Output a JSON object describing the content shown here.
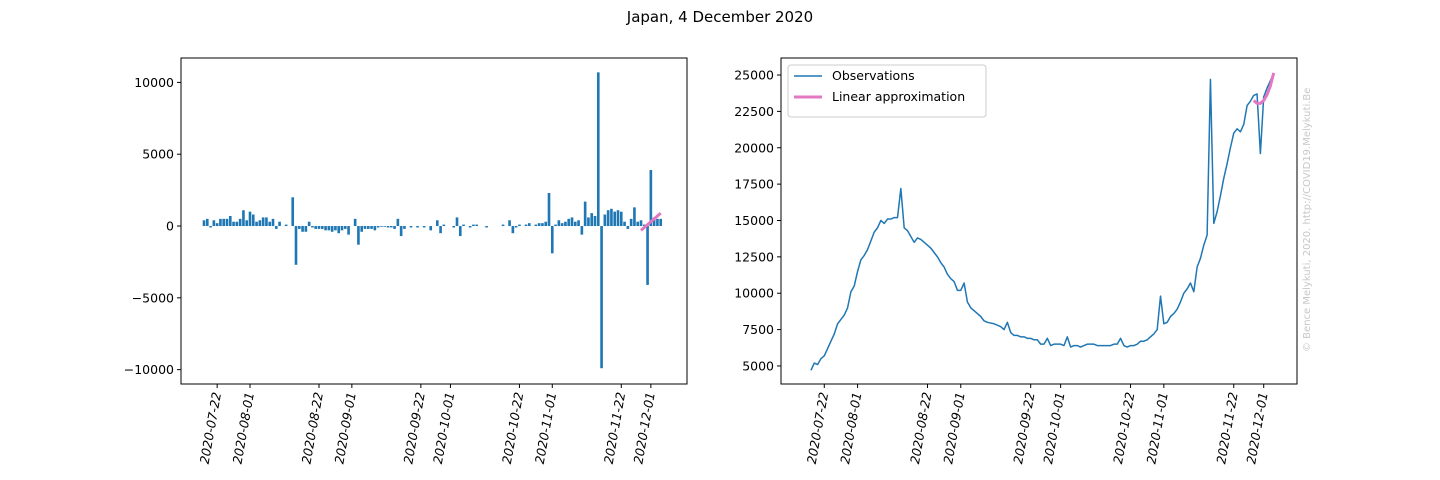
{
  "title": "Japan, 4 December 2020",
  "watermark": "© Bence Melykuti, 2020. http://COVID19.Melykuti.Be",
  "chart_data": [
    {
      "type": "bar",
      "x": [
        "2020-07-18",
        "2020-07-19",
        "2020-07-20",
        "2020-07-21",
        "2020-07-22",
        "2020-07-23",
        "2020-07-24",
        "2020-07-25",
        "2020-07-26",
        "2020-07-27",
        "2020-07-28",
        "2020-07-29",
        "2020-07-30",
        "2020-07-31",
        "2020-08-01",
        "2020-08-02",
        "2020-08-03",
        "2020-08-04",
        "2020-08-05",
        "2020-08-06",
        "2020-08-07",
        "2020-08-08",
        "2020-08-09",
        "2020-08-10",
        "2020-08-11",
        "2020-08-12",
        "2020-08-13",
        "2020-08-14",
        "2020-08-15",
        "2020-08-16",
        "2020-08-17",
        "2020-08-18",
        "2020-08-19",
        "2020-08-20",
        "2020-08-21",
        "2020-08-22",
        "2020-08-23",
        "2020-08-24",
        "2020-08-25",
        "2020-08-26",
        "2020-08-27",
        "2020-08-28",
        "2020-08-29",
        "2020-08-30",
        "2020-08-31",
        "2020-09-01",
        "2020-09-02",
        "2020-09-03",
        "2020-09-04",
        "2020-09-05",
        "2020-09-06",
        "2020-09-07",
        "2020-09-08",
        "2020-09-09",
        "2020-09-10",
        "2020-09-11",
        "2020-09-12",
        "2020-09-13",
        "2020-09-14",
        "2020-09-15",
        "2020-09-16",
        "2020-09-17",
        "2020-09-18",
        "2020-09-19",
        "2020-09-20",
        "2020-09-21",
        "2020-09-22",
        "2020-09-23",
        "2020-09-24",
        "2020-09-25",
        "2020-09-26",
        "2020-09-27",
        "2020-09-28",
        "2020-09-29",
        "2020-09-30",
        "2020-10-01",
        "2020-10-02",
        "2020-10-03",
        "2020-10-04",
        "2020-10-05",
        "2020-10-06",
        "2020-10-07",
        "2020-10-08",
        "2020-10-09",
        "2020-10-10",
        "2020-10-11",
        "2020-10-12",
        "2020-10-13",
        "2020-10-14",
        "2020-10-15",
        "2020-10-16",
        "2020-10-17",
        "2020-10-18",
        "2020-10-19",
        "2020-10-20",
        "2020-10-21",
        "2020-10-22",
        "2020-10-23",
        "2020-10-24",
        "2020-10-25",
        "2020-10-26",
        "2020-10-27",
        "2020-10-28",
        "2020-10-29",
        "2020-10-30",
        "2020-10-31",
        "2020-11-01",
        "2020-11-02",
        "2020-11-03",
        "2020-11-04",
        "2020-11-05",
        "2020-11-06",
        "2020-11-07",
        "2020-11-08",
        "2020-11-09",
        "2020-11-10",
        "2020-11-11",
        "2020-11-12",
        "2020-11-13",
        "2020-11-14",
        "2020-11-15",
        "2020-11-16",
        "2020-11-17",
        "2020-11-18",
        "2020-11-19",
        "2020-11-20",
        "2020-11-21",
        "2020-11-22",
        "2020-11-23",
        "2020-11-24",
        "2020-11-25",
        "2020-11-26",
        "2020-11-27",
        "2020-11-28",
        "2020-11-29",
        "2020-11-30",
        "2020-12-01",
        "2020-12-02",
        "2020-12-03",
        "2020-12-04"
      ],
      "values": [
        400,
        500,
        -100,
        400,
        200,
        500,
        500,
        500,
        700,
        300,
        300,
        500,
        1100,
        400,
        1000,
        800,
        300,
        400,
        600,
        600,
        300,
        500,
        -200,
        300,
        0,
        100,
        0,
        2000,
        -2700,
        -200,
        -400,
        -400,
        300,
        -100,
        -200,
        -200,
        -200,
        -300,
        -300,
        -400,
        -300,
        -500,
        -300,
        -200,
        -600,
        0,
        500,
        -1300,
        -400,
        -200,
        -200,
        -200,
        -300,
        -100,
        -50,
        -50,
        -100,
        -100,
        -200,
        500,
        -700,
        -200,
        0,
        -100,
        0,
        -100,
        0,
        -100,
        0,
        -300,
        0,
        400,
        -500,
        100,
        0,
        0,
        -100,
        600,
        -700,
        100,
        0,
        -100,
        100,
        100,
        0,
        0,
        -100,
        0,
        0,
        0,
        0,
        100,
        0,
        400,
        -500,
        -100,
        100,
        0,
        100,
        200,
        0,
        100,
        200,
        200,
        300,
        2300,
        -1900,
        100,
        400,
        200,
        300,
        500,
        600,
        300,
        400,
        -600,
        1700,
        600,
        900,
        700,
        10700,
        -9900,
        800,
        1100,
        1200,
        1000,
        1100,
        1000,
        300,
        -200,
        500,
        1300,
        300,
        400,
        100,
        -4100,
        3900,
        600,
        500,
        500
      ],
      "color": "#1f77b4",
      "fit": {
        "x": [
          "2020-11-28",
          "2020-11-29",
          "2020-11-30",
          "2020-12-01",
          "2020-12-02",
          "2020-12-03",
          "2020-12-04"
        ],
        "values": [
          -300,
          -100,
          100,
          300,
          500,
          700,
          900
        ],
        "color": "#e377c2"
      },
      "xlim": [
        "2020-07-11",
        "2020-12-12"
      ],
      "xticks": [
        "2020-07-22",
        "2020-08-01",
        "2020-08-22",
        "2020-09-01",
        "2020-09-22",
        "2020-10-01",
        "2020-10-22",
        "2020-11-01",
        "2020-11-22",
        "2020-12-01"
      ],
      "ylim": [
        -11000,
        11700
      ],
      "yticks": [
        {
          "value": -10000,
          "label": "−10000"
        },
        {
          "value": -5000,
          "label": "−5000"
        },
        0,
        5000,
        10000
      ]
    },
    {
      "type": "line",
      "x": [
        "2020-07-18",
        "2020-07-19",
        "2020-07-20",
        "2020-07-21",
        "2020-07-22",
        "2020-07-23",
        "2020-07-24",
        "2020-07-25",
        "2020-07-26",
        "2020-07-27",
        "2020-07-28",
        "2020-07-29",
        "2020-07-30",
        "2020-07-31",
        "2020-08-01",
        "2020-08-02",
        "2020-08-03",
        "2020-08-04",
        "2020-08-05",
        "2020-08-06",
        "2020-08-07",
        "2020-08-08",
        "2020-08-09",
        "2020-08-10",
        "2020-08-11",
        "2020-08-12",
        "2020-08-13",
        "2020-08-14",
        "2020-08-15",
        "2020-08-16",
        "2020-08-17",
        "2020-08-18",
        "2020-08-19",
        "2020-08-20",
        "2020-08-21",
        "2020-08-22",
        "2020-08-23",
        "2020-08-24",
        "2020-08-25",
        "2020-08-26",
        "2020-08-27",
        "2020-08-28",
        "2020-08-29",
        "2020-08-30",
        "2020-08-31",
        "2020-09-01",
        "2020-09-02",
        "2020-09-03",
        "2020-09-04",
        "2020-09-05",
        "2020-09-06",
        "2020-09-07",
        "2020-09-08",
        "2020-09-09",
        "2020-09-10",
        "2020-09-11",
        "2020-09-12",
        "2020-09-13",
        "2020-09-14",
        "2020-09-15",
        "2020-09-16",
        "2020-09-17",
        "2020-09-18",
        "2020-09-19",
        "2020-09-20",
        "2020-09-21",
        "2020-09-22",
        "2020-09-23",
        "2020-09-24",
        "2020-09-25",
        "2020-09-26",
        "2020-09-27",
        "2020-09-28",
        "2020-09-29",
        "2020-09-30",
        "2020-10-01",
        "2020-10-02",
        "2020-10-03",
        "2020-10-04",
        "2020-10-05",
        "2020-10-06",
        "2020-10-07",
        "2020-10-08",
        "2020-10-09",
        "2020-10-10",
        "2020-10-11",
        "2020-10-12",
        "2020-10-13",
        "2020-10-14",
        "2020-10-15",
        "2020-10-16",
        "2020-10-17",
        "2020-10-18",
        "2020-10-19",
        "2020-10-20",
        "2020-10-21",
        "2020-10-22",
        "2020-10-23",
        "2020-10-24",
        "2020-10-25",
        "2020-10-26",
        "2020-10-27",
        "2020-10-28",
        "2020-10-29",
        "2020-10-30",
        "2020-10-31",
        "2020-11-01",
        "2020-11-02",
        "2020-11-03",
        "2020-11-04",
        "2020-11-05",
        "2020-11-06",
        "2020-11-07",
        "2020-11-08",
        "2020-11-09",
        "2020-11-10",
        "2020-11-11",
        "2020-11-12",
        "2020-11-13",
        "2020-11-14",
        "2020-11-15",
        "2020-11-16",
        "2020-11-17",
        "2020-11-18",
        "2020-11-19",
        "2020-11-20",
        "2020-11-21",
        "2020-11-22",
        "2020-11-23",
        "2020-11-24",
        "2020-11-25",
        "2020-11-26",
        "2020-11-27",
        "2020-11-28",
        "2020-11-29",
        "2020-11-30",
        "2020-12-01",
        "2020-12-02",
        "2020-12-03",
        "2020-12-04"
      ],
      "series": [
        {
          "name": "Observations",
          "color": "#1f77b4",
          "width": 1.5,
          "values": [
            4700,
            5200,
            5100,
            5500,
            5700,
            6200,
            6700,
            7200,
            7900,
            8200,
            8500,
            9000,
            10100,
            10500,
            11500,
            12300,
            12600,
            13000,
            13600,
            14200,
            14500,
            15000,
            14800,
            15100,
            15100,
            15200,
            15200,
            17200,
            14500,
            14300,
            13900,
            13500,
            13800,
            13700,
            13500,
            13300,
            13100,
            12800,
            12500,
            12100,
            11800,
            11300,
            11000,
            10800,
            10200,
            10200,
            10700,
            9400,
            9000,
            8800,
            8600,
            8400,
            8100,
            8000,
            7950,
            7900,
            7800,
            7700,
            7500,
            8000,
            7300,
            7100,
            7100,
            7000,
            7000,
            6900,
            6900,
            6800,
            6800,
            6500,
            6500,
            6900,
            6400,
            6500,
            6500,
            6500,
            6400,
            7000,
            6300,
            6400,
            6400,
            6300,
            6400,
            6500,
            6500,
            6500,
            6400,
            6400,
            6400,
            6400,
            6400,
            6500,
            6500,
            6900,
            6400,
            6300,
            6400,
            6400,
            6500,
            6700,
            6700,
            6800,
            7000,
            7200,
            7500,
            9800,
            7900,
            8000,
            8400,
            8600,
            8900,
            9400,
            10000,
            10300,
            10700,
            10100,
            11800,
            12400,
            13300,
            14000,
            24700,
            14800,
            15600,
            16700,
            17900,
            18900,
            20000,
            21000,
            21300,
            21100,
            21600,
            22900,
            23200,
            23600,
            23700,
            19600,
            23500,
            24100,
            24600,
            25100
          ]
        },
        {
          "name": "Linear approximation",
          "color": "#e377c2",
          "width": 3,
          "x": [
            "2020-11-28",
            "2020-11-29",
            "2020-11-30",
            "2020-12-01",
            "2020-12-02",
            "2020-12-03",
            "2020-12-04"
          ],
          "values": [
            23250,
            23050,
            23050,
            23250,
            23650,
            24250,
            25150
          ]
        }
      ],
      "legend": "upper left",
      "xlim": [
        "2020-07-09",
        "2020-12-11"
      ],
      "xticks": [
        "2020-07-22",
        "2020-08-01",
        "2020-08-22",
        "2020-09-01",
        "2020-09-22",
        "2020-10-01",
        "2020-10-22",
        "2020-11-01",
        "2020-11-22",
        "2020-12-01"
      ],
      "ylim": [
        3760,
        26170
      ],
      "yticks": [
        5000,
        7500,
        10000,
        12500,
        15000,
        17500,
        20000,
        22500,
        25000
      ]
    }
  ]
}
